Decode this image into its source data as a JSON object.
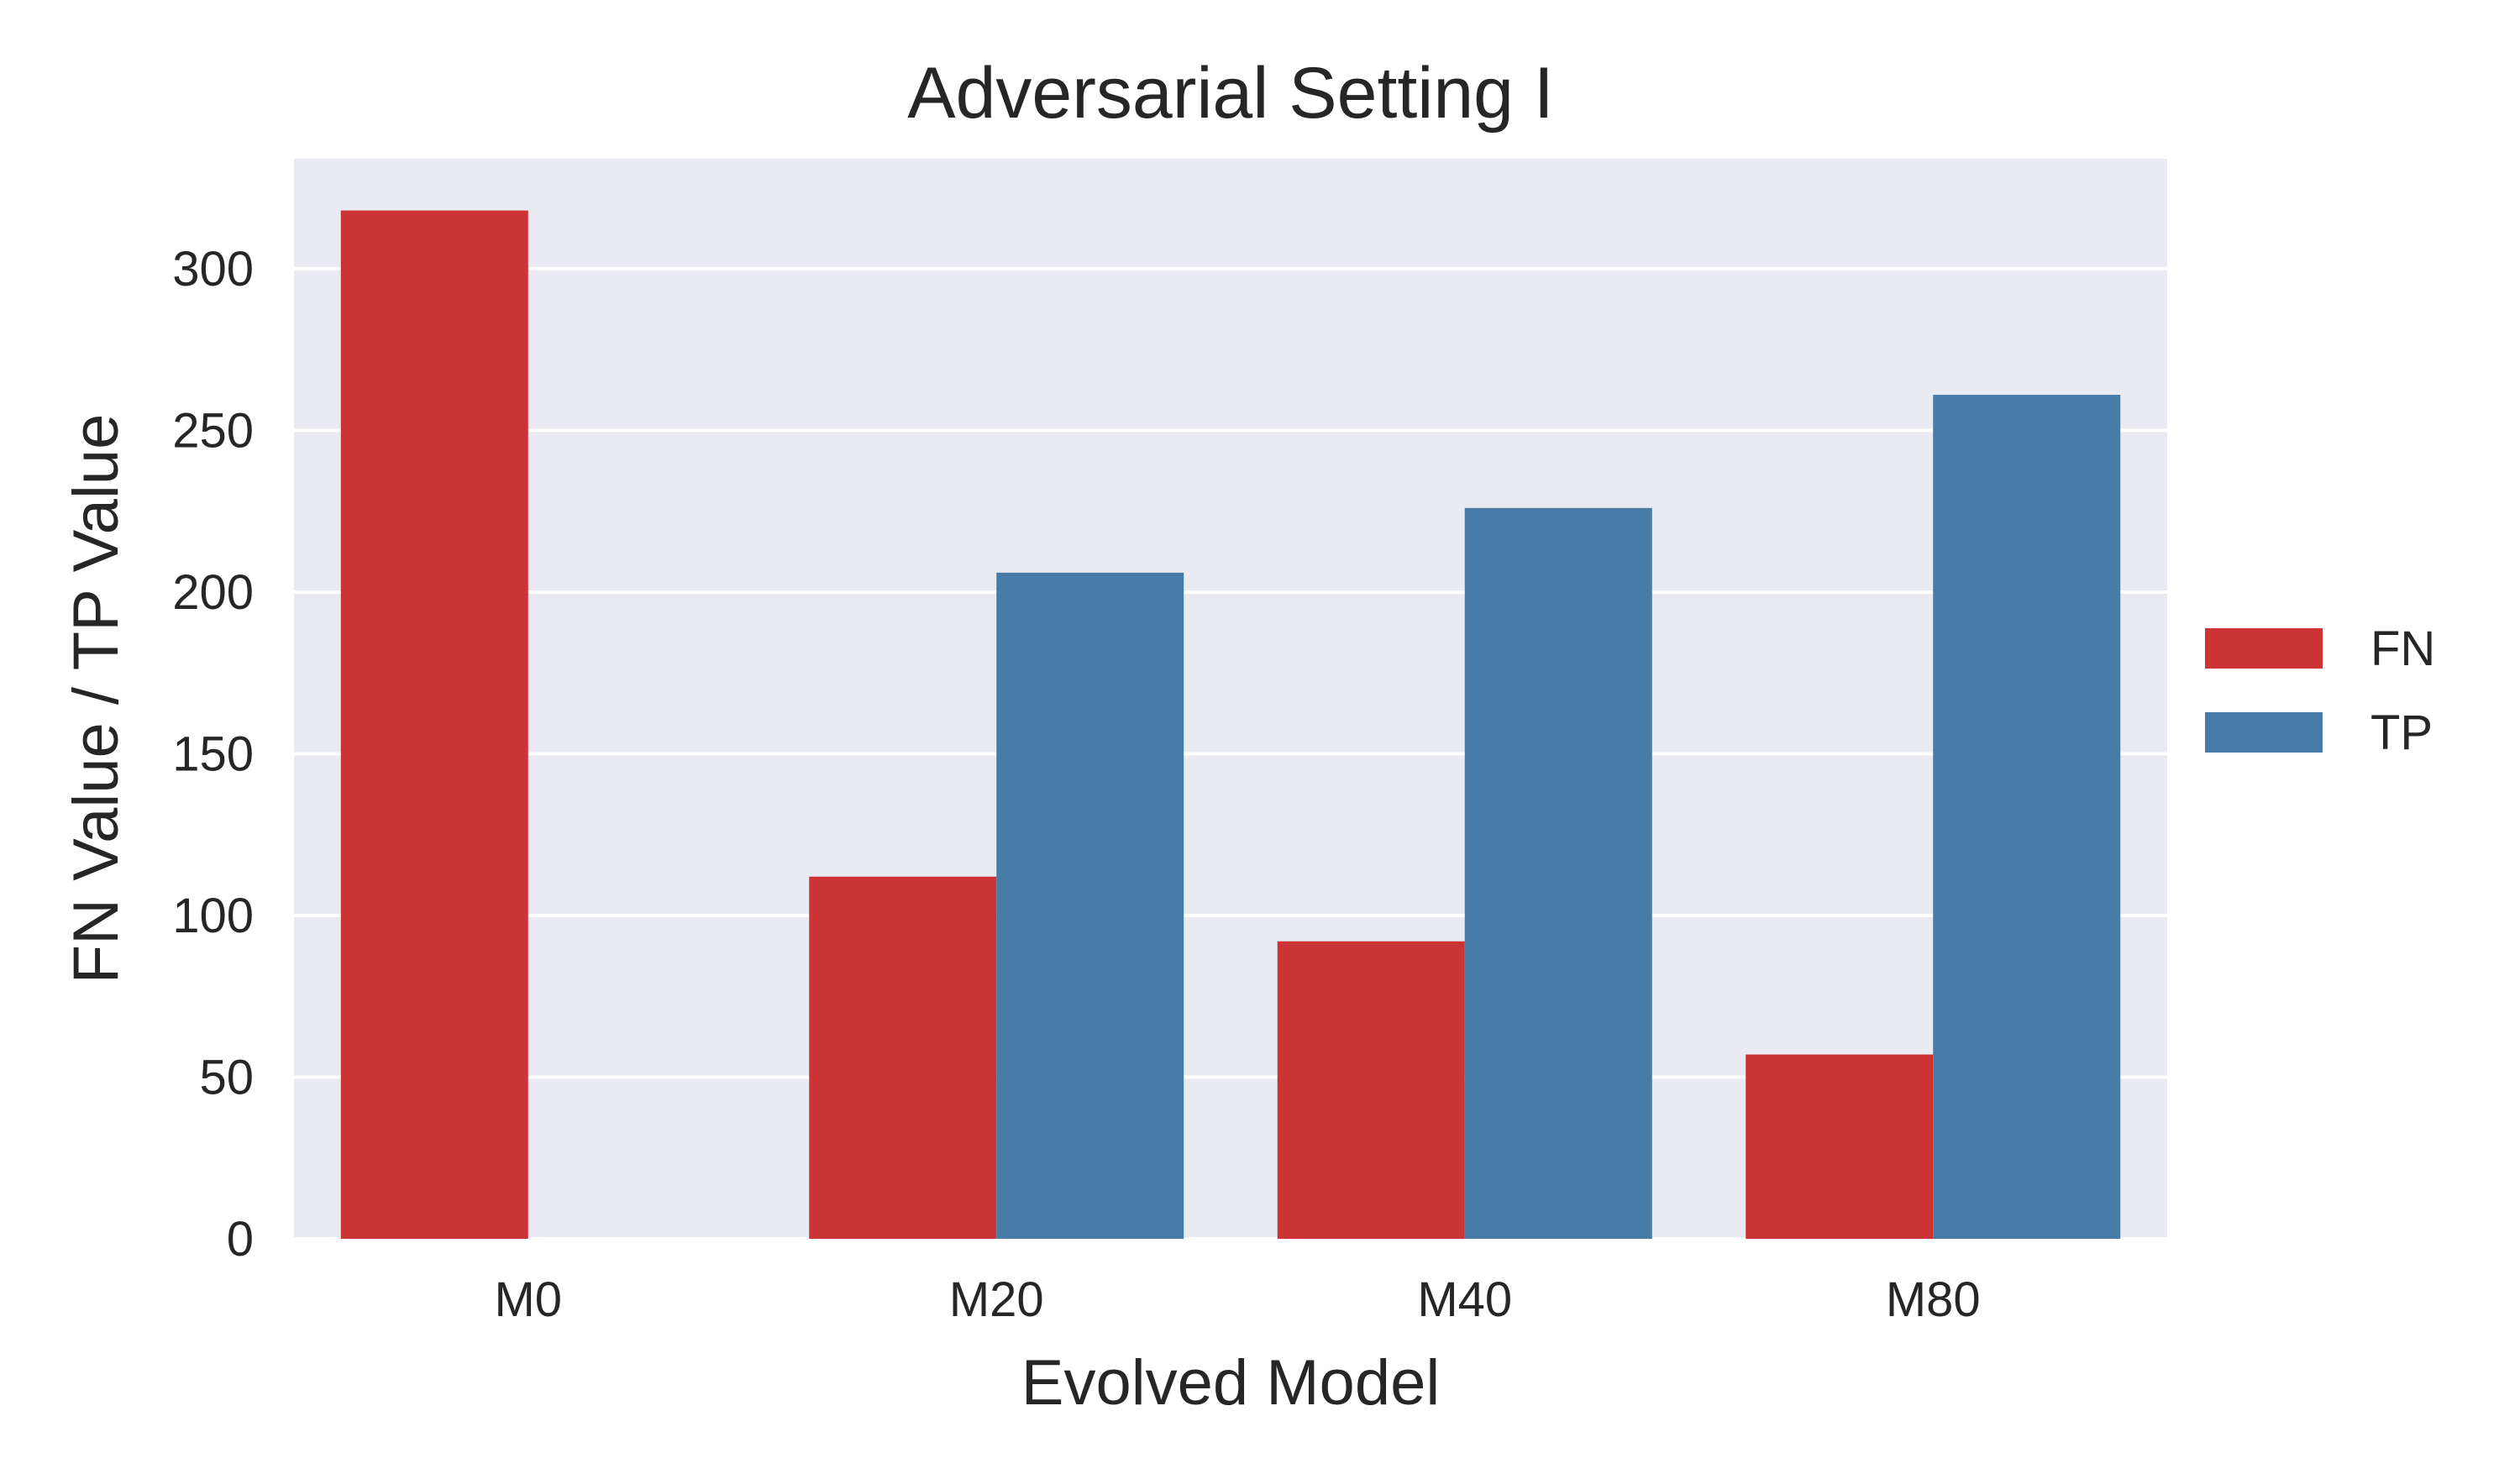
{
  "chart_data": {
    "type": "bar",
    "title": "Adversarial Setting I",
    "xlabel": "Evolved Model",
    "ylabel": "FN Value / TP Value",
    "categories": [
      "M0",
      "M20",
      "M40",
      "M80"
    ],
    "series": [
      {
        "name": "FN",
        "color": "#cb3335",
        "values": [
          318,
          112,
          92,
          57
        ]
      },
      {
        "name": "TP",
        "color": "#477ca8",
        "values": [
          0,
          206,
          226,
          261
        ]
      }
    ],
    "ylim": [
      0,
      334
    ],
    "yticks": [
      0,
      50,
      100,
      150,
      200,
      250,
      300
    ],
    "grid": true,
    "legend_position": "right",
    "plot_background": "#eaeaf2",
    "grid_color": "#ffffff"
  }
}
